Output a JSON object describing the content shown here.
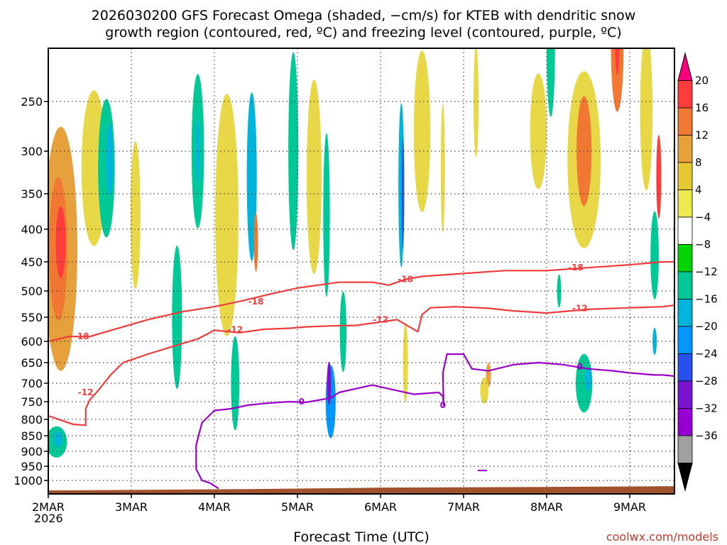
{
  "chart_data": {
    "type": "heatmap",
    "title_line1": "2026030200 GFS Forecast Omega (shaded, −cm/s) for KTEB with dendritic snow",
    "title_line2": "growth region (contoured, red, ºC) and freezing level (contoured, purple, ºC)",
    "xlabel": "Forecast Time (UTC)",
    "credit": "coolwx.com/models",
    "x_ticks": [
      "2MAR",
      "3MAR",
      "4MAR",
      "5MAR",
      "6MAR",
      "7MAR",
      "8MAR",
      "9MAR"
    ],
    "x_start_year": "2026",
    "x_range_days": [
      0,
      7.65
    ],
    "y_ticks": [
      250,
      300,
      350,
      400,
      450,
      500,
      550,
      600,
      650,
      700,
      750,
      800,
      850,
      900,
      950,
      1000
    ],
    "y_range_hpa": [
      200,
      1025
    ],
    "surface_hpa": 1016,
    "colorbar": {
      "labels": [
        "20",
        "16",
        "12",
        "8",
        "4",
        "−4",
        "−8",
        "−12",
        "−16",
        "−20",
        "−24",
        "−28",
        "−32",
        "−36"
      ],
      "colors": [
        "#fa0080",
        "#ff3c3c",
        "#f07832",
        "#e6a03c",
        "#e6c832",
        "#ebeb50",
        "#ffffff",
        "#00d400",
        "#00c896",
        "#00b4dc",
        "#0096ff",
        "#2850f0",
        "#7814d2",
        "#9600d2",
        "#a0a0a0",
        "#000000"
      ]
    },
    "omega_blobs": [
      {
        "d": 0.15,
        "p": 430,
        "dd": 0.4,
        "dp": 360,
        "v": 8
      },
      {
        "d": 0.12,
        "p": 430,
        "dd": 0.22,
        "dp": 220,
        "v": 14
      },
      {
        "d": 0.15,
        "p": 420,
        "dd": 0.12,
        "dp": 110,
        "v": 18
      },
      {
        "d": 0.1,
        "p": 870,
        "dd": 0.25,
        "dp": 100,
        "v": -8
      },
      {
        "d": 0.12,
        "p": 860,
        "dd": 0.1,
        "dp": 50,
        "v": -14
      },
      {
        "d": 0.55,
        "p": 320,
        "dd": 0.3,
        "dp": 180,
        "v": 6
      },
      {
        "d": 0.7,
        "p": 320,
        "dd": 0.2,
        "dp": 160,
        "v": -8
      },
      {
        "d": 0.74,
        "p": 310,
        "dd": 0.08,
        "dp": 80,
        "v": -14
      },
      {
        "d": 1.05,
        "p": 380,
        "dd": 0.12,
        "dp": 200,
        "v": 5
      },
      {
        "d": 1.55,
        "p": 550,
        "dd": 0.12,
        "dp": 280,
        "v": -8
      },
      {
        "d": 1.8,
        "p": 300,
        "dd": 0.15,
        "dp": 170,
        "v": -8
      },
      {
        "d": 1.8,
        "p": 300,
        "dd": 0.05,
        "dp": 70,
        "v": -15
      },
      {
        "d": 2.15,
        "p": 380,
        "dd": 0.28,
        "dp": 320,
        "v": 6
      },
      {
        "d": 2.25,
        "p": 700,
        "dd": 0.1,
        "dp": 240,
        "v": -10
      },
      {
        "d": 2.45,
        "p": 330,
        "dd": 0.12,
        "dp": 200,
        "v": -12
      },
      {
        "d": 2.5,
        "p": 420,
        "dd": 0.05,
        "dp": 90,
        "v": 14
      },
      {
        "d": 2.95,
        "p": 300,
        "dd": 0.12,
        "dp": 220,
        "v": -10
      },
      {
        "d": 3.2,
        "p": 330,
        "dd": 0.18,
        "dp": 230,
        "v": 5
      },
      {
        "d": 3.35,
        "p": 380,
        "dd": 0.08,
        "dp": 220,
        "v": -10
      },
      {
        "d": 3.4,
        "p": 750,
        "dd": 0.12,
        "dp": 200,
        "v": -16
      },
      {
        "d": 3.38,
        "p": 700,
        "dd": 0.05,
        "dp": 110,
        "v": -24
      },
      {
        "d": 3.55,
        "p": 580,
        "dd": 0.08,
        "dp": 170,
        "v": -8
      },
      {
        "d": 4.25,
        "p": 340,
        "dd": 0.07,
        "dp": 200,
        "v": -12
      },
      {
        "d": 4.27,
        "p": 350,
        "dd": 0.03,
        "dp": 140,
        "v": -20
      },
      {
        "d": 4.3,
        "p": 650,
        "dd": 0.06,
        "dp": 190,
        "v": 6
      },
      {
        "d": 4.5,
        "p": 280,
        "dd": 0.2,
        "dp": 170,
        "v": 5
      },
      {
        "d": 4.75,
        "p": 320,
        "dd": 0.05,
        "dp": 150,
        "v": 5
      },
      {
        "d": 5.15,
        "p": 250,
        "dd": 0.06,
        "dp": 110,
        "v": 5
      },
      {
        "d": 5.3,
        "p": 680,
        "dd": 0.06,
        "dp": 60,
        "v": 10
      },
      {
        "d": 5.25,
        "p": 720,
        "dd": 0.1,
        "dp": 70,
        "v": 5
      },
      {
        "d": 5.9,
        "p": 280,
        "dd": 0.2,
        "dp": 120,
        "v": 5
      },
      {
        "d": 6.05,
        "p": 200,
        "dd": 0.1,
        "dp": 130,
        "v": -8
      },
      {
        "d": 6.15,
        "p": 500,
        "dd": 0.05,
        "dp": 60,
        "v": -10
      },
      {
        "d": 6.45,
        "p": 310,
        "dd": 0.4,
        "dp": 200,
        "v": 7
      },
      {
        "d": 6.45,
        "p": 300,
        "dd": 0.18,
        "dp": 120,
        "v": 12
      },
      {
        "d": 6.45,
        "p": 700,
        "dd": 0.2,
        "dp": 150,
        "v": -9
      },
      {
        "d": 6.5,
        "p": 690,
        "dd": 0.08,
        "dp": 60,
        "v": -14
      },
      {
        "d": 6.85,
        "p": 200,
        "dd": 0.15,
        "dp": 120,
        "v": 12
      },
      {
        "d": 6.85,
        "p": 200,
        "dd": 0.05,
        "dp": 50,
        "v": 18
      },
      {
        "d": 7.2,
        "p": 260,
        "dd": 0.15,
        "dp": 160,
        "v": 7
      },
      {
        "d": 7.35,
        "p": 330,
        "dd": 0.06,
        "dp": 100,
        "v": 18
      },
      {
        "d": 7.3,
        "p": 440,
        "dd": 0.1,
        "dp": 140,
        "v": -8
      },
      {
        "d": 7.3,
        "p": 600,
        "dd": 0.05,
        "dp": 60,
        "v": -14
      }
    ],
    "dgz_contours": [
      {
        "label": "-18",
        "points": [
          [
            0,
            600
          ],
          [
            0.25,
            590
          ],
          [
            0.5,
            590
          ],
          [
            0.9,
            570
          ],
          [
            1.2,
            555
          ],
          [
            1.6,
            540
          ],
          [
            2.0,
            530
          ],
          [
            2.3,
            520
          ],
          [
            2.7,
            505
          ],
          [
            3.0,
            495
          ],
          [
            3.5,
            485
          ],
          [
            3.9,
            485
          ],
          [
            4.1,
            490
          ],
          [
            4.3,
            480
          ],
          [
            4.5,
            475
          ],
          [
            5.0,
            470
          ],
          [
            5.5,
            465
          ],
          [
            6.0,
            465
          ],
          [
            6.5,
            460
          ],
          [
            7.0,
            455
          ],
          [
            7.4,
            450
          ],
          [
            7.65,
            450
          ]
        ],
        "labels_at": [
          [
            0.4,
            590
          ],
          [
            2.5,
            520
          ],
          [
            4.3,
            480
          ],
          [
            6.35,
            460
          ]
        ]
      },
      {
        "label": "-12",
        "points": [
          [
            0.45,
            770
          ],
          [
            0.5,
            745
          ],
          [
            0.6,
            720
          ],
          [
            0.75,
            680
          ],
          [
            0.9,
            650
          ],
          [
            1.2,
            630
          ],
          [
            1.5,
            612
          ],
          [
            1.8,
            595
          ],
          [
            2.0,
            577
          ],
          [
            2.3,
            582
          ],
          [
            2.6,
            575
          ],
          [
            2.9,
            573
          ],
          [
            3.1,
            570
          ],
          [
            3.4,
            568
          ],
          [
            3.7,
            567
          ],
          [
            4.0,
            560
          ],
          [
            4.2,
            555
          ],
          [
            4.45,
            580
          ],
          [
            4.5,
            545
          ],
          [
            4.6,
            532
          ],
          [
            4.9,
            530
          ],
          [
            5.3,
            533
          ],
          [
            5.6,
            538
          ],
          [
            6.0,
            542
          ],
          [
            6.5,
            535
          ],
          [
            7.0,
            532
          ],
          [
            7.4,
            530
          ],
          [
            7.65,
            525
          ]
        ],
        "labels_at": [
          [
            0.45,
            725
          ],
          [
            2.25,
            576
          ],
          [
            4.0,
            555
          ],
          [
            6.4,
            533
          ]
        ]
      },
      {
        "label": "-12",
        "points": [
          [
            0,
            790
          ],
          [
            0.3,
            815
          ],
          [
            0.45,
            818
          ],
          [
            0.45,
            770
          ]
        ],
        "labels_at": []
      }
    ],
    "freezing_contours": [
      {
        "label": "0",
        "points": [
          [
            2.05,
            1015
          ],
          [
            1.95,
            1005
          ],
          [
            1.85,
            1000
          ],
          [
            1.78,
            960
          ],
          [
            1.78,
            880
          ],
          [
            1.85,
            810
          ],
          [
            2.0,
            775
          ],
          [
            2.2,
            770
          ],
          [
            2.4,
            760
          ],
          [
            2.6,
            755
          ],
          [
            2.9,
            750
          ],
          [
            3.1,
            752
          ],
          [
            3.4,
            740
          ],
          [
            3.5,
            725
          ],
          [
            3.7,
            715
          ],
          [
            3.9,
            705
          ],
          [
            4.0,
            710
          ],
          [
            4.2,
            720
          ],
          [
            4.4,
            730
          ],
          [
            4.7,
            725
          ],
          [
            4.75,
            735
          ],
          [
            4.76,
            760
          ],
          [
            4.75,
            675
          ],
          [
            4.8,
            630
          ],
          [
            5.0,
            630
          ],
          [
            5.1,
            665
          ],
          [
            5.3,
            670
          ],
          [
            5.6,
            655
          ],
          [
            5.9,
            650
          ],
          [
            6.2,
            655
          ],
          [
            6.5,
            665
          ],
          [
            6.8,
            670
          ],
          [
            7.0,
            675
          ],
          [
            7.3,
            680
          ],
          [
            7.4,
            680
          ],
          [
            7.65,
            685
          ]
        ],
        "labels_at": [
          [
            3.05,
            750
          ],
          [
            4.75,
            760
          ],
          [
            6.4,
            660
          ]
        ]
      },
      {
        "label": "0",
        "points": [
          [
            5.17,
            965
          ],
          [
            5.28,
            965
          ]
        ],
        "labels_at": []
      }
    ]
  }
}
